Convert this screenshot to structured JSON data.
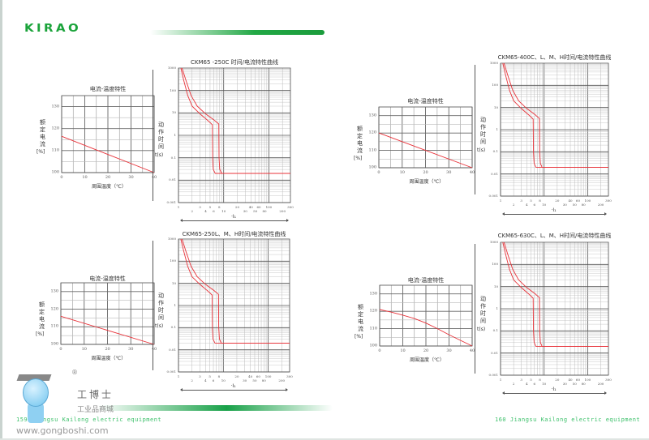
{
  "header": {
    "logo": "KIRAO"
  },
  "footer": {
    "left": "159  Jiangsu Kailong electric equipment",
    "right": "160  Jiangsu Kailong electric equipment"
  },
  "watermark": {
    "name": "工博士",
    "registered": "®",
    "subtitle": "工业品商城",
    "url": "www.gongboshi.com"
  },
  "colors": {
    "accent": "#1aa33a",
    "curve": "#e8333a",
    "grid": "#888888"
  },
  "chart_data": [
    {
      "id": "temp1",
      "type": "line",
      "title": "电流-温度特性",
      "xlabel": "周围温度（℃）",
      "ylabel": "额定电流",
      "yunit": "[%]",
      "xlim": [
        0,
        40
      ],
      "ylim": [
        100,
        135
      ],
      "xticks": [
        0,
        10,
        20,
        30,
        40
      ],
      "yticks": [
        100,
        110,
        120,
        130
      ],
      "grid": true,
      "series": [
        {
          "name": "rated-current",
          "x": [
            0,
            40
          ],
          "y": [
            116.5,
            100
          ]
        }
      ]
    },
    {
      "id": "tc1",
      "type": "line",
      "title": "CKM65 -250C 时间/电流特性曲线",
      "xlabel": "·I₁",
      "ylabel": "动作时间",
      "yunit": "t(s)",
      "xscale": "log",
      "yscale": "log",
      "xlim": [
        1,
        300
      ],
      "ylim": [
        0.001,
        1000
      ],
      "xticks": [
        1,
        2,
        3,
        4,
        5,
        6,
        8,
        10,
        20,
        30,
        40,
        50,
        60,
        80,
        100,
        200,
        300
      ],
      "yticks": [
        0.001,
        0.01,
        0.1,
        1,
        10,
        100,
        1000
      ],
      "grid": true,
      "series": [
        {
          "name": "min",
          "x": [
            1.13,
            1.3,
            1.6,
            2,
            3,
            4.5,
            5.6,
            5.7,
            5.9,
            6.5,
            300
          ],
          "y": [
            1000,
            300,
            60,
            20,
            9,
            4.5,
            3,
            0.1,
            0.03,
            0.02,
            0.02
          ]
        },
        {
          "name": "max",
          "x": [
            1.2,
            1.45,
            1.9,
            2.6,
            4,
            6,
            7.8,
            7.9,
            8.2,
            9,
            300
          ],
          "y": [
            1000,
            300,
            60,
            20,
            9,
            5,
            3.2,
            0.1,
            0.03,
            0.02,
            0.02
          ]
        }
      ]
    },
    {
      "id": "temp2",
      "type": "line",
      "title": "电流-温度特性",
      "xlabel": "周围温度（℃）",
      "ylabel": "额定电流",
      "yunit": "[%]",
      "xlim": [
        0,
        40
      ],
      "ylim": [
        100,
        135
      ],
      "xticks": [
        0,
        10,
        20,
        30,
        40
      ],
      "yticks": [
        100,
        110,
        120,
        130
      ],
      "grid": true,
      "series": [
        {
          "name": "rated-current",
          "x": [
            0,
            40
          ],
          "y": [
            120,
            100
          ]
        }
      ]
    },
    {
      "id": "tc2",
      "type": "line",
      "title": "CKM65-400C、L、M、H时间/电流特性曲线",
      "xlabel": "·I₁",
      "ylabel": "动作时间",
      "yunit": "t(s)",
      "xscale": "log",
      "yscale": "log",
      "xlim": [
        1,
        300
      ],
      "ylim": [
        0.001,
        1000
      ],
      "xticks": [
        1,
        2,
        3,
        4,
        5,
        6,
        8,
        10,
        20,
        30,
        40,
        50,
        60,
        80,
        100,
        200,
        300
      ],
      "yticks": [
        0.001,
        0.01,
        0.1,
        1,
        10,
        100,
        1000
      ],
      "grid": true,
      "series": [
        {
          "name": "min",
          "x": [
            1.13,
            1.3,
            1.6,
            2,
            3,
            4.5,
            5.6,
            5.7,
            5.9,
            6.5,
            300
          ],
          "y": [
            1000,
            300,
            60,
            20,
            9,
            4.5,
            3,
            0.1,
            0.03,
            0.02,
            0.02
          ]
        },
        {
          "name": "max",
          "x": [
            1.2,
            1.45,
            1.9,
            2.6,
            4,
            6,
            7.8,
            7.9,
            8.2,
            9,
            300
          ],
          "y": [
            1000,
            300,
            60,
            20,
            9,
            5,
            3.2,
            0.1,
            0.03,
            0.02,
            0.02
          ]
        }
      ]
    },
    {
      "id": "temp3",
      "type": "line",
      "title": "电流-温度特性",
      "xlabel": "周围温度（℃）",
      "ylabel": "额定电流",
      "yunit": "[%]",
      "xlim": [
        0,
        40
      ],
      "ylim": [
        100,
        135
      ],
      "xticks": [
        0,
        10,
        20,
        30,
        40
      ],
      "yticks": [
        100,
        110,
        120,
        130
      ],
      "grid": true,
      "series": [
        {
          "name": "rated-current",
          "x": [
            0,
            40
          ],
          "y": [
            116,
            100
          ]
        }
      ]
    },
    {
      "id": "tc3",
      "type": "line",
      "title": "CKM65-250L、M、H时间/电流特性曲线",
      "xlabel": "·I₁",
      "ylabel": "动作时间",
      "yunit": "t(s)",
      "xscale": "log",
      "yscale": "log",
      "xlim": [
        1,
        300
      ],
      "ylim": [
        0.001,
        1000
      ],
      "xticks": [
        1,
        2,
        3,
        4,
        5,
        6,
        8,
        10,
        20,
        30,
        40,
        50,
        60,
        80,
        100,
        200,
        300
      ],
      "yticks": [
        0.001,
        0.01,
        0.1,
        1,
        10,
        100,
        1000
      ],
      "grid": true,
      "series": [
        {
          "name": "min",
          "x": [
            1.13,
            1.3,
            1.6,
            2,
            3,
            4.5,
            5.6,
            5.7,
            5.9,
            6.5,
            300
          ],
          "y": [
            1000,
            300,
            60,
            20,
            9,
            4.5,
            3,
            0.1,
            0.03,
            0.02,
            0.02
          ]
        },
        {
          "name": "max",
          "x": [
            1.2,
            1.45,
            1.9,
            2.6,
            4,
            6,
            7.8,
            7.9,
            8.2,
            9,
            300
          ],
          "y": [
            1000,
            300,
            60,
            20,
            9,
            5,
            3.2,
            0.1,
            0.03,
            0.02,
            0.02
          ]
        }
      ]
    },
    {
      "id": "temp4",
      "type": "line",
      "title": "电流-温度特性",
      "xlabel": "周围温度（℃）",
      "ylabel": "额定电流",
      "yunit": "[%]",
      "xlim": [
        0,
        40
      ],
      "ylim": [
        100,
        135
      ],
      "xticks": [
        0,
        10,
        20,
        30,
        40
      ],
      "yticks": [
        100,
        110,
        120,
        130
      ],
      "grid": true,
      "series": [
        {
          "name": "rated-current",
          "x": [
            0,
            5,
            10,
            15,
            20,
            25,
            30,
            35,
            40
          ],
          "y": [
            121,
            119.5,
            117.8,
            115.8,
            113.2,
            110,
            106.5,
            103.2,
            100
          ]
        }
      ]
    },
    {
      "id": "tc4",
      "type": "line",
      "title": "CKM65-630C、L、M、H时间/电流特性曲线",
      "xlabel": "·I₁",
      "ylabel": "动作时间",
      "yunit": "t(s)",
      "xscale": "log",
      "yscale": "log",
      "xlim": [
        1,
        300
      ],
      "ylim": [
        0.001,
        1000
      ],
      "xticks": [
        1,
        2,
        3,
        4,
        5,
        6,
        8,
        10,
        20,
        30,
        40,
        50,
        60,
        80,
        100,
        200,
        300
      ],
      "yticks": [
        0.001,
        0.01,
        0.1,
        1,
        10,
        100,
        1000
      ],
      "grid": true,
      "series": [
        {
          "name": "min",
          "x": [
            1.13,
            1.3,
            1.6,
            2,
            3,
            4.5,
            5.6,
            5.7,
            5.9,
            6.5,
            300
          ],
          "y": [
            1000,
            300,
            60,
            20,
            9,
            4.5,
            3,
            0.1,
            0.03,
            0.02,
            0.02
          ]
        },
        {
          "name": "max",
          "x": [
            1.2,
            1.45,
            1.9,
            2.6,
            4,
            6,
            7.8,
            7.9,
            8.2,
            9,
            300
          ],
          "y": [
            1000,
            300,
            60,
            20,
            9,
            5,
            3.2,
            0.1,
            0.03,
            0.02,
            0.02
          ]
        }
      ]
    }
  ]
}
